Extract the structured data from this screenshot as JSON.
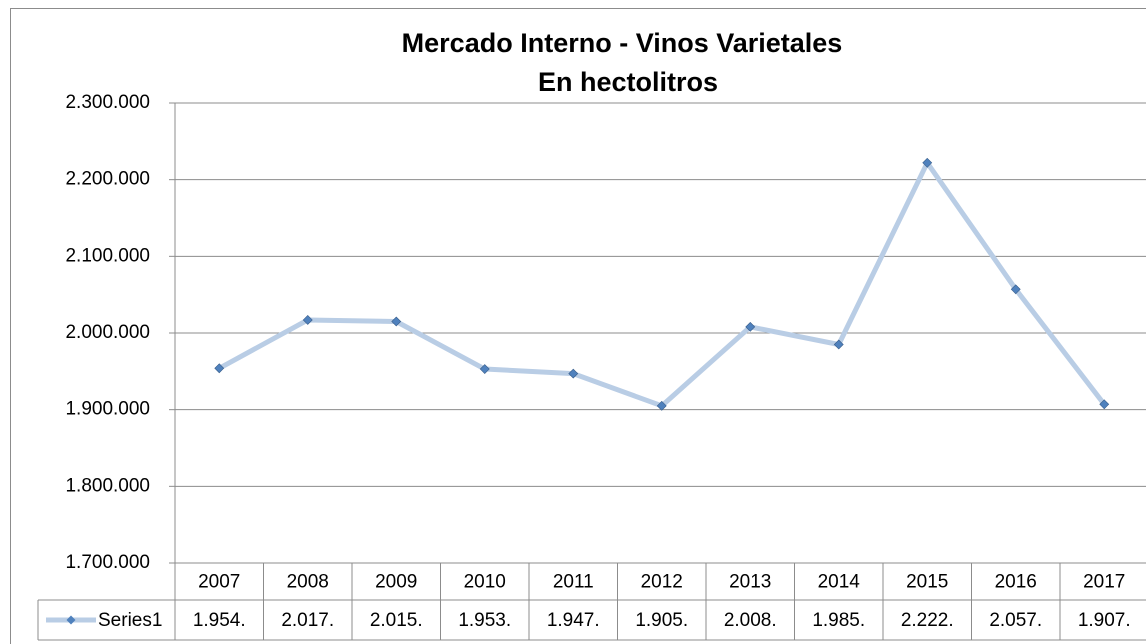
{
  "chart_data": {
    "type": "line",
    "title": "Mercado Interno - Vinos Varietales",
    "subtitle": "En hectolitros",
    "categories": [
      "2007",
      "2008",
      "2009",
      "2010",
      "2011",
      "2012",
      "2013",
      "2014",
      "2015",
      "2016",
      "2017"
    ],
    "series": [
      {
        "name": "Series1",
        "color": "#b9cde5",
        "marker_color": "#4f81bd",
        "values": [
          1954000,
          2017000,
          2015000,
          1953000,
          1947000,
          1905000,
          2008000,
          1985000,
          2222000,
          2057000,
          1907000
        ],
        "value_labels": [
          "1.954.",
          "2.017.",
          "2.015.",
          "1.953.",
          "1.947.",
          "1.905.",
          "2.008.",
          "1.985.",
          "2.222.",
          "2.057.",
          "1.907."
        ]
      }
    ],
    "ylim": [
      1700000,
      2300000
    ],
    "yticks": [
      {
        "value": 1700000,
        "label": "1.700.000"
      },
      {
        "value": 1800000,
        "label": "1.800.000"
      },
      {
        "value": 1900000,
        "label": "1.900.000"
      },
      {
        "value": 2000000,
        "label": "2.000.000"
      },
      {
        "value": 2100000,
        "label": "2.100.000"
      },
      {
        "value": 2200000,
        "label": "2.200.000"
      },
      {
        "value": 2300000,
        "label": "2.300.000"
      }
    ],
    "grid": true,
    "data_table": true
  }
}
